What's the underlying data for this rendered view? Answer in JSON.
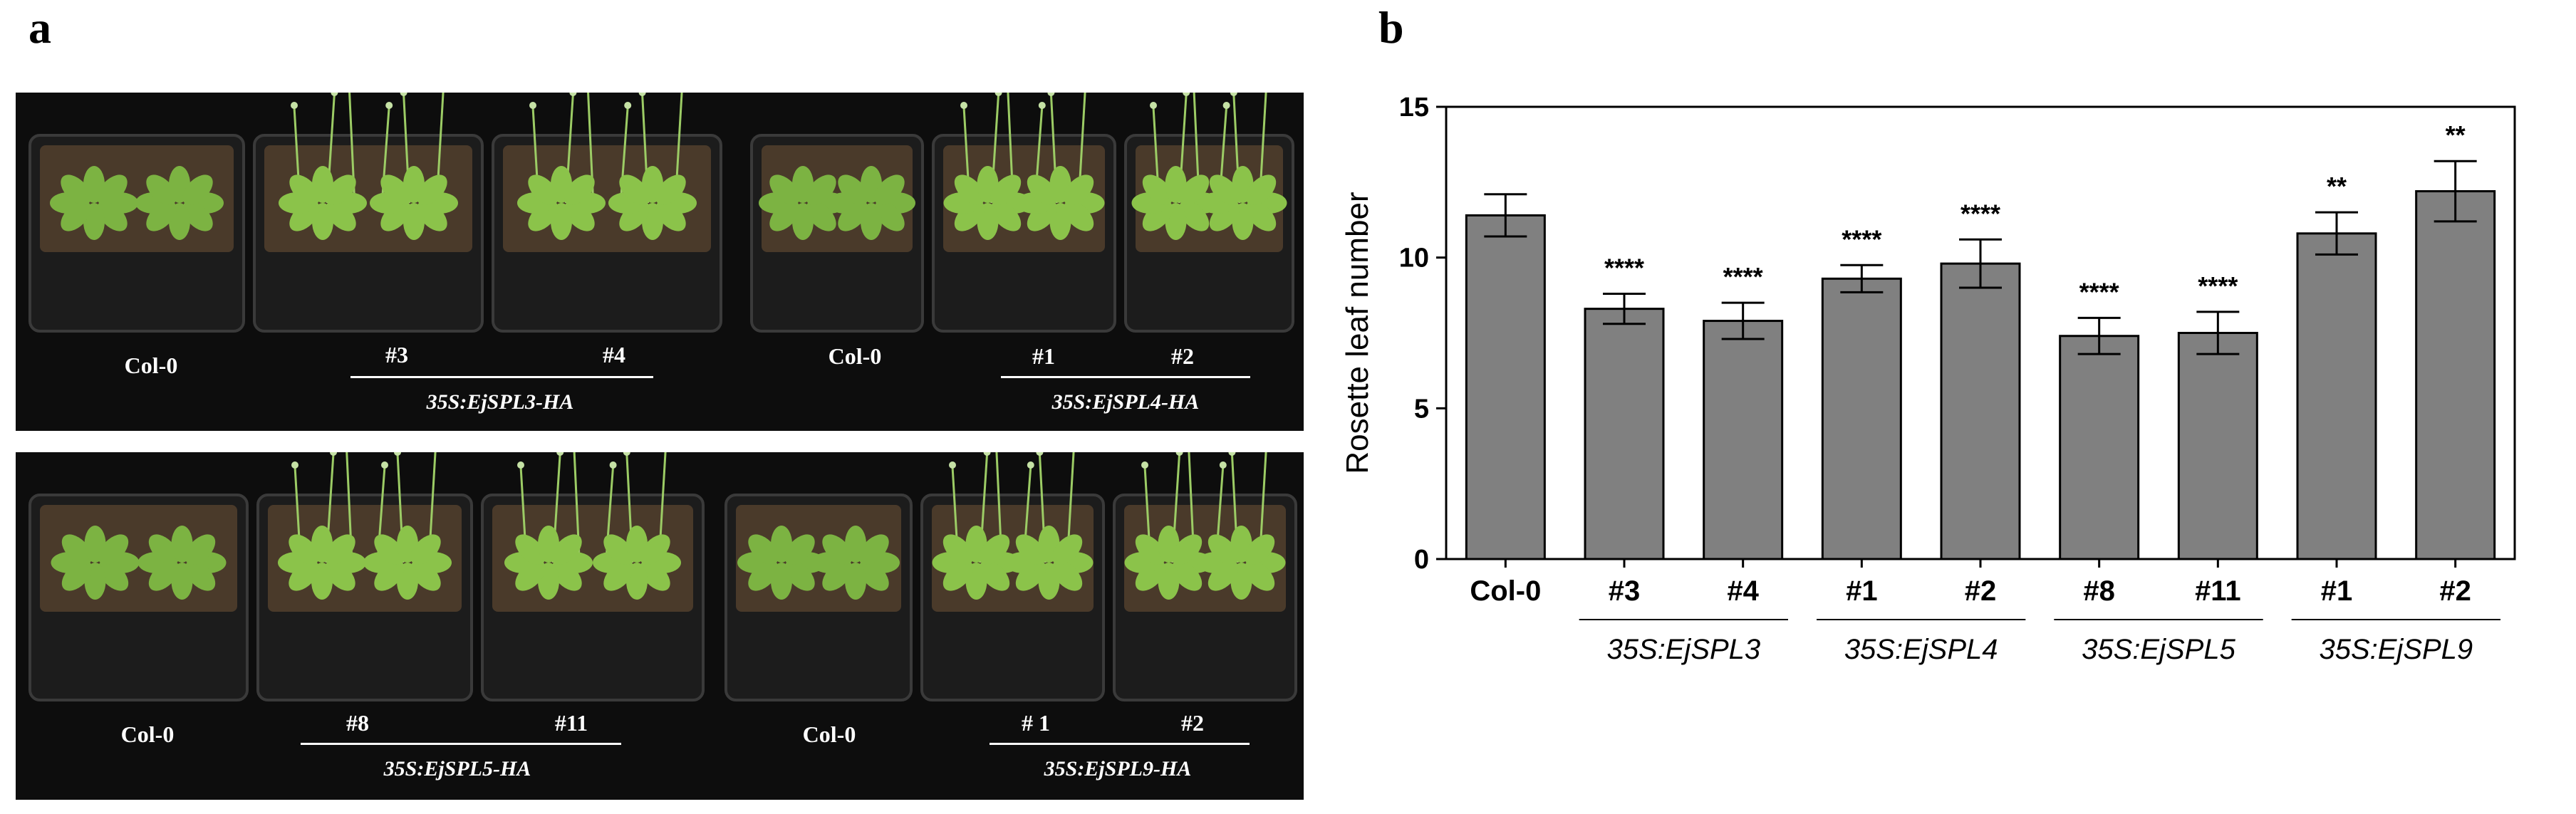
{
  "panel_a": {
    "letter": "a",
    "photos": [
      {
        "col0": "Col-0",
        "lines": [
          "#3",
          "#4"
        ],
        "genotype": "35S:EjSPL3-HA"
      },
      {
        "col0": "Col-0",
        "lines": [
          "#1",
          "#2"
        ],
        "genotype": "35S:EjSPL4-HA"
      },
      {
        "col0": "Col-0",
        "lines": [
          "#8",
          "#11"
        ],
        "genotype": "35S:EjSPL5-HA"
      },
      {
        "col0": "Col-0",
        "lines": [
          "# 1",
          "#2"
        ],
        "genotype": "35S:EjSPL9-HA"
      }
    ]
  },
  "panel_b": {
    "letter": "b"
  },
  "chart_data": {
    "type": "bar",
    "ylabel": "Rosette leaf number",
    "ylim": [
      0,
      15
    ],
    "yticks": [
      "0",
      "5",
      "10",
      "15"
    ],
    "categories": [
      "Col-0",
      "#3",
      "#4",
      "#1",
      "#2",
      "#8",
      "#11",
      "#1",
      "#2"
    ],
    "values": [
      11.4,
      8.3,
      7.9,
      9.3,
      9.8,
      7.4,
      7.5,
      10.8,
      12.2
    ],
    "errors": [
      0.7,
      0.5,
      0.6,
      0.45,
      0.8,
      0.6,
      0.7,
      0.7,
      1.0
    ],
    "significance": [
      "",
      "****",
      "****",
      "****",
      "****",
      "****",
      "****",
      "**",
      "**"
    ],
    "groups": [
      {
        "label": "35S:EjSPL3",
        "from": 1,
        "to": 2
      },
      {
        "label": "35S:EjSPL4",
        "from": 3,
        "to": 4
      },
      {
        "label": "35S:EjSPL5",
        "from": 5,
        "to": 6
      },
      {
        "label": "35S:EjSPL9",
        "from": 7,
        "to": 8
      }
    ],
    "bar_color": "#808080"
  }
}
